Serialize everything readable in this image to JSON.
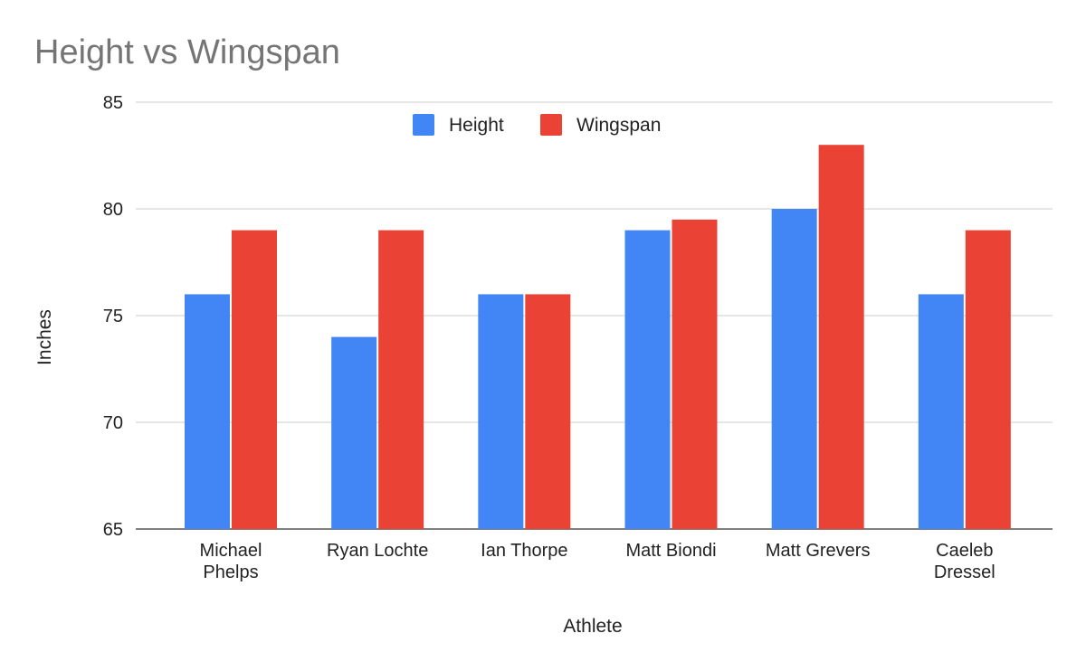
{
  "chart_data": {
    "type": "bar",
    "title": "Height vs Wingspan",
    "xlabel": "Athlete",
    "ylabel": "Inches",
    "categories": [
      [
        "Michael",
        "Phelps"
      ],
      [
        "Ryan Lochte"
      ],
      [
        "Ian Thorpe"
      ],
      [
        "Matt Biondi"
      ],
      [
        "Matt Grevers"
      ],
      [
        "Caeleb",
        "Dressel"
      ]
    ],
    "series": [
      {
        "name": "Height",
        "color": "#4285f4",
        "values": [
          76,
          74,
          76,
          79,
          80,
          76
        ]
      },
      {
        "name": "Wingspan",
        "color": "#ea4335",
        "values": [
          79,
          79,
          76,
          79.5,
          83,
          79
        ]
      }
    ],
    "ylim": [
      65,
      85
    ],
    "yticks": [
      "65",
      "70",
      "75",
      "80",
      "85"
    ],
    "grid": true,
    "legend_position": "top-center"
  }
}
